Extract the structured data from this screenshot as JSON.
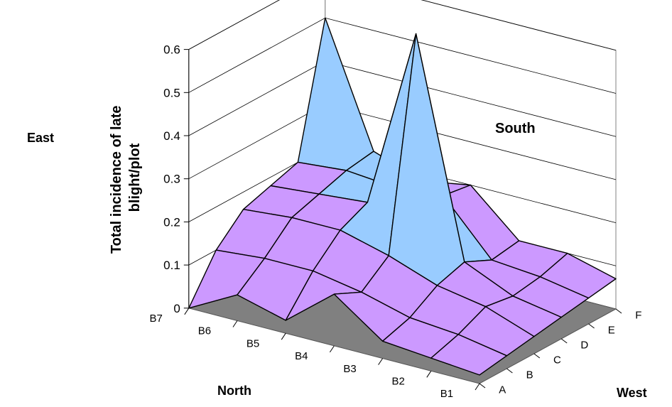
{
  "chart_data": {
    "type": "surface",
    "title": "",
    "ylabel_lines": [
      "Total incidence of late",
      "blight/plot"
    ],
    "z_ticks": [
      "0",
      "0.1",
      "0.2",
      "0.3",
      "0.4",
      "0.5",
      "0.6"
    ],
    "z_range": [
      0,
      0.6
    ],
    "rows": [
      "B1",
      "B2",
      "B3",
      "B4",
      "B5",
      "B6",
      "B7"
    ],
    "columns": [
      "A",
      "B",
      "C",
      "D",
      "E",
      "F"
    ],
    "side_labels": {
      "north": "North",
      "south": "South",
      "east": "East",
      "west": "West"
    },
    "grid": true,
    "bands": [
      {
        "range": "0-0.1",
        "color": "#cc99ff"
      },
      {
        "range": "0.1-0.2",
        "color": "#cc99ff"
      },
      {
        "range": "0.2-0.3",
        "color": "#99ccff"
      },
      {
        "range": "0.3-0.4",
        "color": "#ccffff"
      },
      {
        "range": "0.4-0.5",
        "color": "#ccffcc"
      },
      {
        "range": "0.5-0.6",
        "color": "#ffff99"
      },
      {
        "range": ">0.6",
        "color": "#ffcc00"
      }
    ],
    "floor_color": "#808080",
    "values": [
      [
        0.02,
        0.03,
        0.04,
        0.05,
        0.06,
        0.07
      ],
      [
        0.03,
        0.05,
        0.08,
        0.07,
        0.08,
        0.1
      ],
      [
        0.04,
        0.06,
        0.1,
        0.12,
        0.09,
        0.1
      ],
      [
        0.12,
        0.09,
        0.14,
        0.62,
        0.21,
        0.2
      ],
      [
        0.03,
        0.11,
        0.17,
        0.2,
        0.2,
        0.18
      ],
      [
        0.06,
        0.11,
        0.17,
        0.19,
        0.21,
        0.22
      ],
      [
        0.0,
        0.1,
        0.16,
        0.18,
        0.2,
        0.5
      ]
    ]
  }
}
